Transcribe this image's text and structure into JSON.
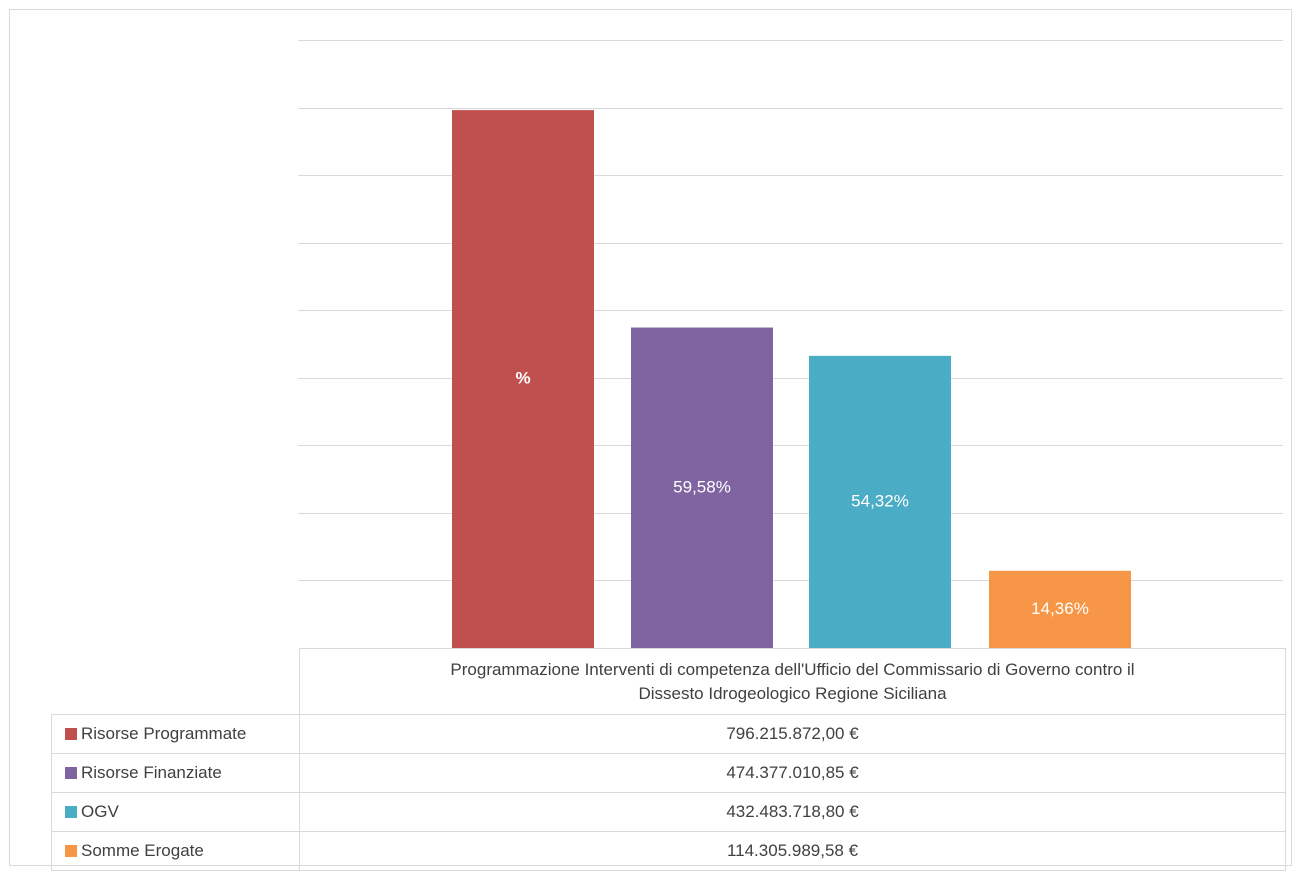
{
  "chart_data": {
    "type": "bar",
    "categories": [
      "Programmazione Interventi di competenza dell'Ufficio del Commissario di Governo contro il Dissesto Idrogeologico Regione Siciliana"
    ],
    "category_lines": [
      "Programmazione Interventi di competenza dell'Ufficio del Commissario di Governo contro il",
      "Dissesto Idrogeologico Regione Siciliana"
    ],
    "series": [
      {
        "name": "Risorse Programmate",
        "value": 796215872.0,
        "value_label": "796.215.872,00 €",
        "bar_label": "%",
        "color": "#C0504D"
      },
      {
        "name": "Risorse Finanziate",
        "value": 474377010.85,
        "value_label": "474.377.010,85 €",
        "bar_label": "59,58%",
        "color": "#8064A2"
      },
      {
        "name": "OGV",
        "value": 432483718.8,
        "value_label": "432.483.718,80 €",
        "bar_label": "54,32%",
        "color": "#4BACC6"
      },
      {
        "name": "Somme Erogate",
        "value": 114305989.58,
        "value_label": "114.305.989,58 €",
        "bar_label": "14,36%",
        "color": "#F79646"
      }
    ],
    "ylim": [
      0,
      900000000
    ],
    "grid": true,
    "legend": "data-table"
  }
}
